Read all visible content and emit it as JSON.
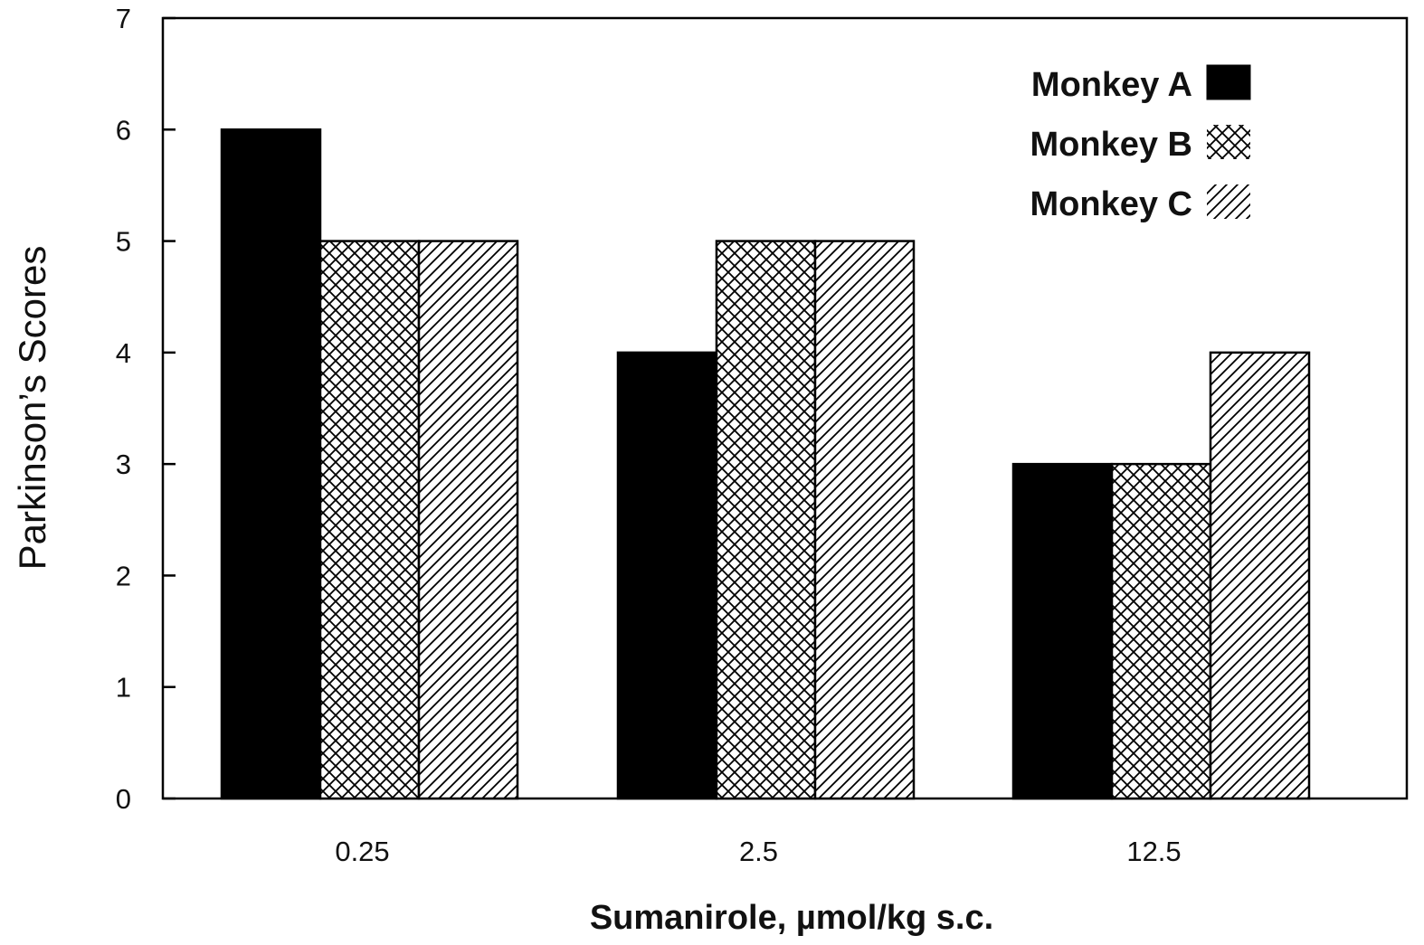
{
  "chart_data": {
    "type": "bar",
    "xlabel": "Sumanirole, µmol/kg s.c.",
    "ylabel": "Parkinson’s Scores",
    "categories": [
      "0.25",
      "2.5",
      "12.5"
    ],
    "ylim": [
      0,
      7
    ],
    "yticks": [
      "0",
      "1",
      "2",
      "3",
      "4",
      "5",
      "6",
      "7"
    ],
    "grid": false,
    "legend_position": "top-right",
    "series": [
      {
        "name": "Monkey A",
        "values": [
          6,
          4,
          3
        ],
        "fill": "solid",
        "color": "#000000"
      },
      {
        "name": "Monkey B",
        "values": [
          5,
          5,
          3
        ],
        "fill": "crosshatch",
        "color": "#000000"
      },
      {
        "name": "Monkey C",
        "values": [
          5,
          5,
          4
        ],
        "fill": "diagonal",
        "color": "#000000"
      }
    ]
  }
}
